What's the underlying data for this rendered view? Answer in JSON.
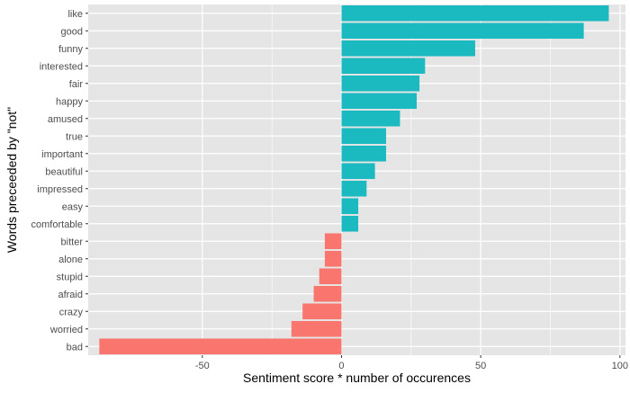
{
  "chart_data": {
    "type": "bar",
    "orientation": "horizontal",
    "xlabel": "Sentiment score * number of occurences",
    "ylabel": "Words preceeded by \"not\"",
    "xlim": [
      -91,
      102
    ],
    "xticks": [
      -50,
      0,
      50,
      100
    ],
    "xtick_labels": [
      "-50",
      "0",
      "50",
      "100"
    ],
    "grid": true,
    "legend": "none",
    "colors": {
      "positive": "#1ABAC0",
      "negative": "#F8766D",
      "panel": "#E5E5E5",
      "gridline": "#FFFFFF",
      "text": "#4D4D4D"
    },
    "categories": [
      "like",
      "good",
      "funny",
      "interested",
      "fair",
      "happy",
      "amused",
      "true",
      "important",
      "beautiful",
      "impressed",
      "easy",
      "comfortable",
      "bitter",
      "alone",
      "stupid",
      "afraid",
      "crazy",
      "worried",
      "bad"
    ],
    "values": [
      96,
      87,
      48,
      30,
      28,
      27,
      21,
      16,
      16,
      12,
      9,
      6,
      6,
      -6,
      -6,
      -8,
      -10,
      -14,
      -18,
      -87
    ]
  }
}
